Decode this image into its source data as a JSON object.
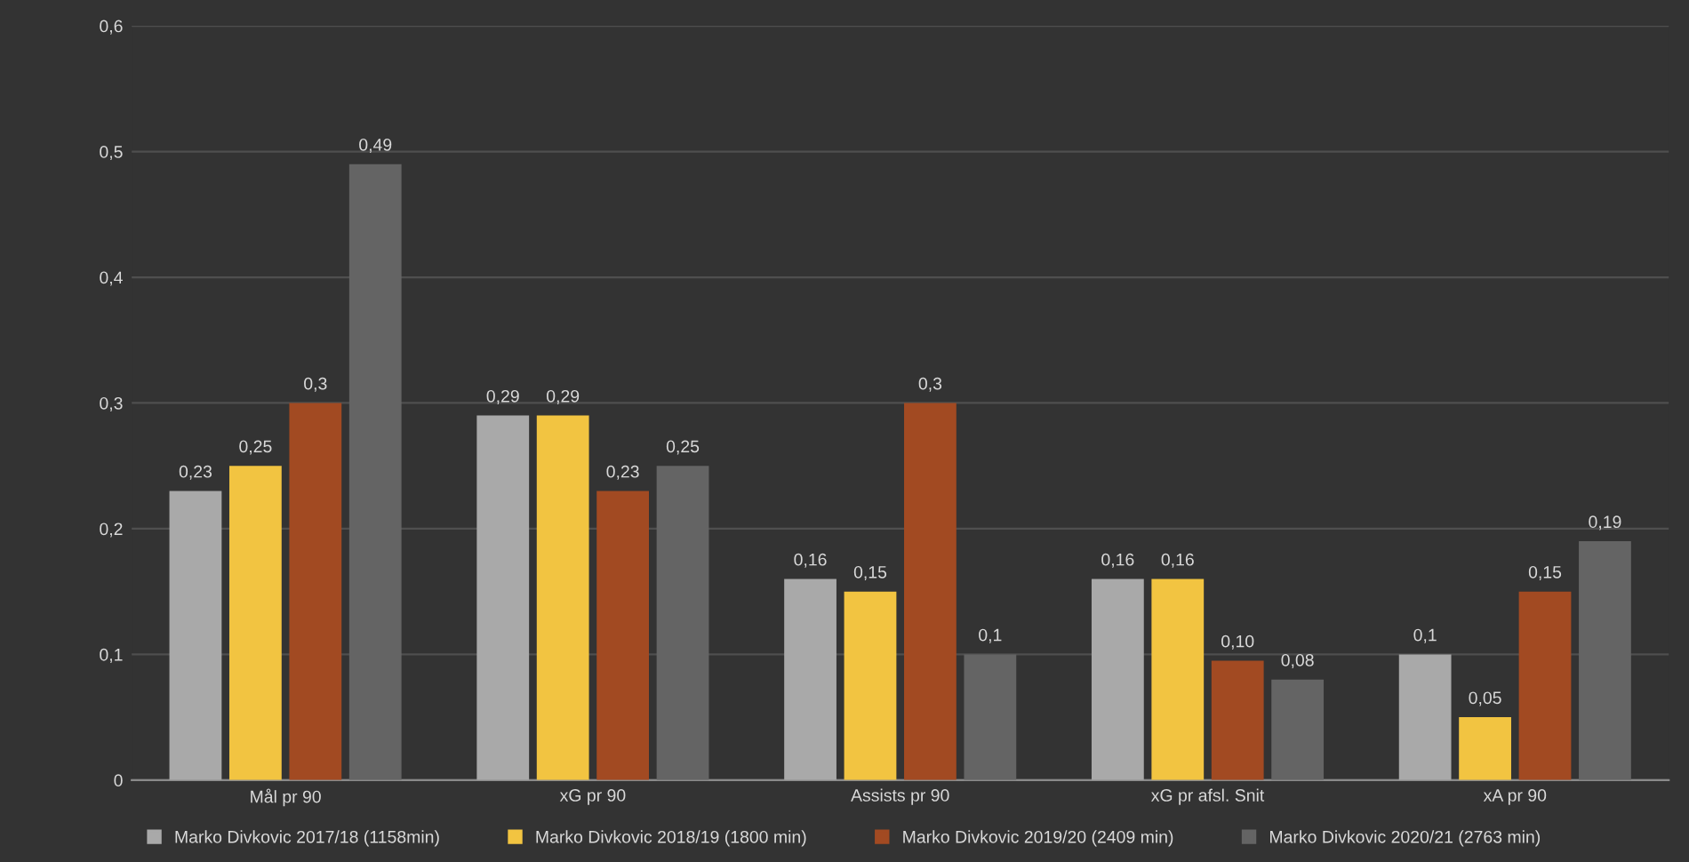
{
  "chart_data": {
    "type": "bar",
    "categories": [
      "Mål pr 90",
      "xG pr 90",
      "Assists pr 90",
      "xG pr afsl. Snit",
      "xA pr 90"
    ],
    "series": [
      {
        "name": "Marko Divkovic 2017/18 (1158min)",
        "color": "#a9a9a9",
        "values": [
          0.23,
          0.29,
          0.16,
          0.16,
          0.1
        ],
        "value_labels": [
          "0,23",
          "0,29",
          "0,16",
          "0,16",
          "0,1"
        ]
      },
      {
        "name": "Marko Divkovic 2018/19 (1800 min)",
        "color": "#f2c441",
        "values": [
          0.25,
          0.29,
          0.15,
          0.16,
          0.05
        ],
        "value_labels": [
          "0,25",
          "0,29",
          "0,15",
          "0,16",
          "0,05"
        ]
      },
      {
        "name": "Marko Divkovic 2019/20 (2409 min)",
        "color": "#a24a22",
        "values": [
          0.3,
          0.23,
          0.3,
          0.095,
          0.15
        ],
        "value_labels": [
          "0,3",
          "0,23",
          "0,3",
          "0,10",
          "0,15"
        ]
      },
      {
        "name": "Marko Divkovic 2020/21 (2763 min)",
        "color": "#646464",
        "values": [
          0.49,
          0.25,
          0.1,
          0.08,
          0.19
        ],
        "value_labels": [
          "0,49",
          "0,25",
          "0,1",
          "0,08",
          "0,19"
        ]
      }
    ],
    "ylim": [
      0,
      0.6
    ],
    "yticks": [
      0,
      {
        "value": 0.1,
        "label": "0,1"
      },
      {
        "value": 0.2,
        "label": "0,2"
      },
      {
        "value": 0.3,
        "label": "0,3"
      },
      {
        "value": 0.4,
        "label": "0,4"
      },
      {
        "value": 0.5,
        "label": "0,5"
      },
      {
        "value": 0.6,
        "label": "0,6"
      }
    ],
    "grid": "y",
    "legend": "bottom"
  }
}
